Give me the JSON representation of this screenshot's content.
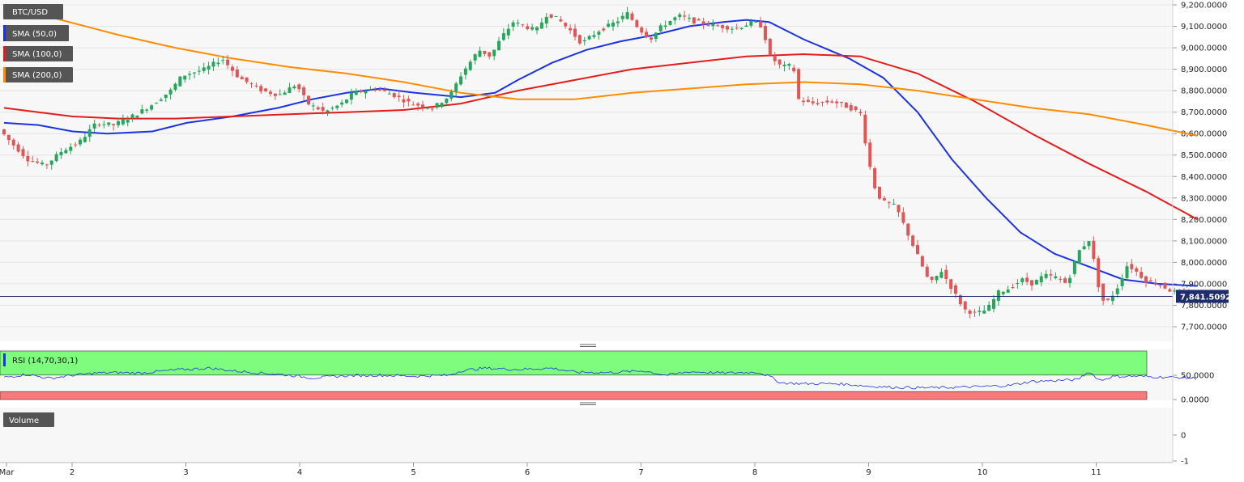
{
  "chart_data": [
    {
      "type": "candlestick",
      "symbol": "BTC/USD",
      "ylim": [
        7630000,
        9220000
      ],
      "y_ticks": [
        7700000,
        7800000,
        7900000,
        8000000,
        8100000,
        8200000,
        8300000,
        8400000,
        8500000,
        8600000,
        8700000,
        8800000,
        8900000,
        9000000,
        9100000,
        9200000
      ],
      "y_tick_labels": [
        "7,700.0000",
        "7,800.0000",
        "7,900.0000",
        "8,000.0000",
        "8,100.0000",
        "8,200.0000",
        "8,300.0000",
        "8,400.0000",
        "8,500.0000",
        "8,600.0000",
        "8,700.0000",
        "8,800.0000",
        "8,900.0000",
        "9,000.0000",
        "9,100.0000",
        "9,200.0000"
      ],
      "x_ticks": [
        {
          "label": "Mar",
          "day": 1.0
        },
        {
          "label": "2",
          "day": 2.0
        },
        {
          "label": "3",
          "day": 3.0
        },
        {
          "label": "4",
          "day": 4.0
        },
        {
          "label": "5",
          "day": 5.0
        },
        {
          "label": "6",
          "day": 6.0
        },
        {
          "label": "7",
          "day": 7.0
        },
        {
          "label": "8",
          "day": 8.0
        },
        {
          "label": "9",
          "day": 9.0
        },
        {
          "label": "10",
          "day": 10.0
        },
        {
          "label": "11",
          "day": 11.0
        }
      ],
      "price_path": [
        [
          1.0,
          8620000
        ],
        [
          1.1,
          8560000
        ],
        [
          1.25,
          8480000
        ],
        [
          1.4,
          8450000
        ],
        [
          1.55,
          8520000
        ],
        [
          1.7,
          8560000
        ],
        [
          1.85,
          8650000
        ],
        [
          2.0,
          8640000
        ],
        [
          2.2,
          8690000
        ],
        [
          2.35,
          8740000
        ],
        [
          2.5,
          8800000
        ],
        [
          2.6,
          8870000
        ],
        [
          2.8,
          8900000
        ],
        [
          2.95,
          8950000
        ],
        [
          3.1,
          8860000
        ],
        [
          3.3,
          8800000
        ],
        [
          3.45,
          8780000
        ],
        [
          3.6,
          8830000
        ],
        [
          3.7,
          8740000
        ],
        [
          3.85,
          8700000
        ],
        [
          4.0,
          8740000
        ],
        [
          4.1,
          8790000
        ],
        [
          4.3,
          8810000
        ],
        [
          4.45,
          8780000
        ],
        [
          4.6,
          8740000
        ],
        [
          4.8,
          8720000
        ],
        [
          4.95,
          8780000
        ],
        [
          5.05,
          8880000
        ],
        [
          5.2,
          8990000
        ],
        [
          5.3,
          8960000
        ],
        [
          5.4,
          9050000
        ],
        [
          5.5,
          9120000
        ],
        [
          5.6,
          9100000
        ],
        [
          5.7,
          9080000
        ],
        [
          5.8,
          9160000
        ],
        [
          5.9,
          9130000
        ],
        [
          6.0,
          9080000
        ],
        [
          6.1,
          9020000
        ],
        [
          6.25,
          9080000
        ],
        [
          6.4,
          9120000
        ],
        [
          6.5,
          9160000
        ],
        [
          6.6,
          9090000
        ],
        [
          6.7,
          9040000
        ],
        [
          6.8,
          9100000
        ],
        [
          6.95,
          9150000
        ],
        [
          7.1,
          9120000
        ],
        [
          7.3,
          9100000
        ],
        [
          7.45,
          9090000
        ],
        [
          7.6,
          9120000
        ],
        [
          7.68,
          9100000
        ],
        [
          7.75,
          8960000
        ],
        [
          7.85,
          8910000
        ],
        [
          7.95,
          8920000
        ],
        [
          8.0,
          8760000
        ],
        [
          8.1,
          8740000
        ],
        [
          8.3,
          8750000
        ],
        [
          8.45,
          8720000
        ],
        [
          8.55,
          8690000
        ],
        [
          8.6,
          8500000
        ],
        [
          8.68,
          8320000
        ],
        [
          8.75,
          8280000
        ],
        [
          8.85,
          8260000
        ],
        [
          8.95,
          8140000
        ],
        [
          9.05,
          8020000
        ],
        [
          9.15,
          7900000
        ],
        [
          9.25,
          7960000
        ],
        [
          9.35,
          7870000
        ],
        [
          9.45,
          7780000
        ],
        [
          9.55,
          7760000
        ],
        [
          9.65,
          7780000
        ],
        [
          9.75,
          7860000
        ],
        [
          9.85,
          7880000
        ],
        [
          9.95,
          7920000
        ],
        [
          10.05,
          7900000
        ],
        [
          10.15,
          7940000
        ],
        [
          10.25,
          7930000
        ],
        [
          10.35,
          7900000
        ],
        [
          10.45,
          8050000
        ],
        [
          10.55,
          8110000
        ],
        [
          10.62,
          7900000
        ],
        [
          10.68,
          7800000
        ],
        [
          10.78,
          7870000
        ],
        [
          10.88,
          7990000
        ],
        [
          10.95,
          7960000
        ],
        [
          11.05,
          7910000
        ],
        [
          11.15,
          7900000
        ],
        [
          11.25,
          7870000
        ],
        [
          11.35,
          7850000
        ],
        [
          11.45,
          7841509
        ]
      ],
      "series": [
        {
          "name": "SMA (50,0)",
          "color": "#1c33e0",
          "values": [
            [
              1.0,
              8650000
            ],
            [
              1.3,
              8640000
            ],
            [
              1.6,
              8610000
            ],
            [
              1.9,
              8600000
            ],
            [
              2.3,
              8610000
            ],
            [
              2.6,
              8650000
            ],
            [
              3.0,
              8680000
            ],
            [
              3.4,
              8720000
            ],
            [
              3.7,
              8760000
            ],
            [
              4.0,
              8790000
            ],
            [
              4.3,
              8810000
            ],
            [
              4.6,
              8790000
            ],
            [
              5.0,
              8770000
            ],
            [
              5.3,
              8790000
            ],
            [
              5.5,
              8850000
            ],
            [
              5.8,
              8930000
            ],
            [
              6.1,
              8990000
            ],
            [
              6.4,
              9030000
            ],
            [
              6.7,
              9060000
            ],
            [
              7.0,
              9100000
            ],
            [
              7.3,
              9120000
            ],
            [
              7.5,
              9130000
            ],
            [
              7.7,
              9120000
            ],
            [
              8.0,
              9040000
            ],
            [
              8.4,
              8950000
            ],
            [
              8.7,
              8860000
            ],
            [
              9.0,
              8700000
            ],
            [
              9.3,
              8480000
            ],
            [
              9.6,
              8300000
            ],
            [
              9.9,
              8140000
            ],
            [
              10.2,
              8040000
            ],
            [
              10.5,
              7980000
            ],
            [
              10.8,
              7920000
            ],
            [
              11.1,
              7900000
            ],
            [
              11.45,
              7890000
            ]
          ]
        },
        {
          "name": "SMA (100,0)",
          "color": "#e31c1c",
          "values": [
            [
              1.0,
              8720000
            ],
            [
              1.3,
              8700000
            ],
            [
              1.6,
              8680000
            ],
            [
              2.0,
              8670000
            ],
            [
              2.5,
              8670000
            ],
            [
              3.0,
              8680000
            ],
            [
              3.5,
              8690000
            ],
            [
              4.0,
              8700000
            ],
            [
              4.5,
              8710000
            ],
            [
              5.0,
              8740000
            ],
            [
              5.5,
              8800000
            ],
            [
              6.0,
              8850000
            ],
            [
              6.5,
              8900000
            ],
            [
              7.0,
              8930000
            ],
            [
              7.5,
              8960000
            ],
            [
              8.0,
              8970000
            ],
            [
              8.5,
              8960000
            ],
            [
              9.0,
              8880000
            ],
            [
              9.5,
              8750000
            ],
            [
              10.0,
              8600000
            ],
            [
              10.5,
              8460000
            ],
            [
              11.0,
              8330000
            ],
            [
              11.45,
              8200000
            ]
          ]
        },
        {
          "name": "SMA (200,0)",
          "color": "#ff8c00",
          "values": [
            [
              1.0,
              9200000
            ],
            [
              1.5,
              9130000
            ],
            [
              2.0,
              9060000
            ],
            [
              2.5,
              9000000
            ],
            [
              3.0,
              8950000
            ],
            [
              3.5,
              8910000
            ],
            [
              4.0,
              8880000
            ],
            [
              4.5,
              8840000
            ],
            [
              5.0,
              8790000
            ],
            [
              5.5,
              8760000
            ],
            [
              6.0,
              8760000
            ],
            [
              6.5,
              8790000
            ],
            [
              7.0,
              8810000
            ],
            [
              7.5,
              8830000
            ],
            [
              8.0,
              8840000
            ],
            [
              8.5,
              8830000
            ],
            [
              9.0,
              8800000
            ],
            [
              9.5,
              8760000
            ],
            [
              10.0,
              8720000
            ],
            [
              10.5,
              8690000
            ],
            [
              11.0,
              8640000
            ],
            [
              11.45,
              8590000
            ]
          ]
        }
      ],
      "last_price_label": "7,841.5092",
      "last_price": 7841509
    },
    {
      "type": "line",
      "indicator": "RSI (14,70,30,1)",
      "ylim": [
        0,
        100
      ],
      "y_ticks": [
        0,
        50
      ],
      "y_tick_labels": [
        "0.0000",
        "50.0000"
      ],
      "overbought": 70,
      "oversold": 30,
      "series": [
        {
          "name": "RSI",
          "color": "#1c33e0",
          "values": [
            [
              1.0,
              45
            ],
            [
              1.2,
              52
            ],
            [
              1.4,
              43
            ],
            [
              1.6,
              50
            ],
            [
              1.8,
              55
            ],
            [
              2.0,
              56
            ],
            [
              2.2,
              55
            ],
            [
              2.5,
              62
            ],
            [
              2.8,
              66
            ],
            [
              3.0,
              60
            ],
            [
              3.2,
              56
            ],
            [
              3.5,
              50
            ],
            [
              3.7,
              44
            ],
            [
              4.0,
              49
            ],
            [
              4.3,
              50
            ],
            [
              4.6,
              48
            ],
            [
              4.9,
              50
            ],
            [
              5.0,
              60
            ],
            [
              5.2,
              66
            ],
            [
              5.5,
              63
            ],
            [
              5.8,
              66
            ],
            [
              6.0,
              57
            ],
            [
              6.3,
              56
            ],
            [
              6.6,
              60
            ],
            [
              6.8,
              50
            ],
            [
              7.0,
              58
            ],
            [
              7.3,
              55
            ],
            [
              7.6,
              57
            ],
            [
              7.7,
              48
            ],
            [
              7.8,
              33
            ],
            [
              8.0,
              31
            ],
            [
              8.3,
              31
            ],
            [
              8.6,
              25
            ],
            [
              8.8,
              23
            ],
            [
              9.0,
              22
            ],
            [
              9.2,
              22
            ],
            [
              9.5,
              24
            ],
            [
              9.8,
              27
            ],
            [
              10.0,
              36
            ],
            [
              10.2,
              38
            ],
            [
              10.4,
              40
            ],
            [
              10.5,
              58
            ],
            [
              10.6,
              38
            ],
            [
              10.7,
              47
            ],
            [
              10.9,
              48
            ],
            [
              11.1,
              46
            ],
            [
              11.3,
              45
            ],
            [
              11.45,
              43
            ]
          ]
        }
      ]
    },
    {
      "type": "bar",
      "indicator": "Volume",
      "ylim": [
        -1,
        1
      ],
      "y_ticks": [
        -1,
        0
      ],
      "y_tick_labels": [
        "-1",
        "0"
      ],
      "values": []
    }
  ],
  "legend": {
    "symbol": "BTC/USD",
    "sma50": "SMA (50,0)",
    "sma100": "SMA (100,0)",
    "sma200": "SMA (200,0)",
    "rsi": "RSI (14,70,30,1)",
    "volume": "Volume"
  },
  "colors": {
    "up": "#26a65b",
    "down": "#e05555",
    "rsi_overbought_band": "#7dfc7d",
    "rsi_oversold_band": "#f87a7a",
    "last_price_line": "#1f2d6e",
    "grid": "#e4e4e4"
  }
}
